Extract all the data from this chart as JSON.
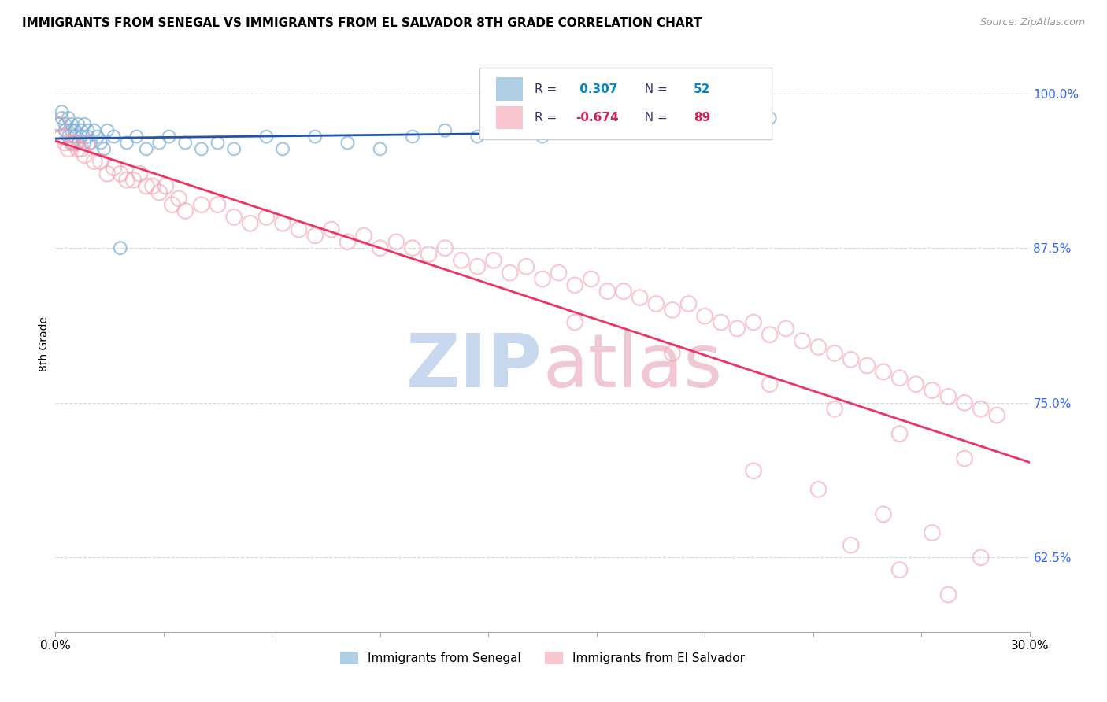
{
  "title": "IMMIGRANTS FROM SENEGAL VS IMMIGRANTS FROM EL SALVADOR 8TH GRADE CORRELATION CHART",
  "source": "Source: ZipAtlas.com",
  "ylabel": "8th Grade",
  "yaxis_labels": [
    "100.0%",
    "87.5%",
    "75.0%",
    "62.5%"
  ],
  "yaxis_values": [
    1.0,
    0.875,
    0.75,
    0.625
  ],
  "legend_senegal": "Immigrants from Senegal",
  "legend_salvador": "Immigrants from El Salvador",
  "R_senegal": 0.307,
  "N_senegal": 52,
  "R_salvador": -0.674,
  "N_salvador": 89,
  "senegal_color": "#7bafd4",
  "salvador_color": "#f4a0b0",
  "senegal_line_color": "#2255aa",
  "salvador_line_color": "#ee3366",
  "watermark_color_zip": "#c8d8ee",
  "watermark_color_atlas": "#f0c8d4",
  "bg_color": "#ffffff",
  "grid_color": "#d8d8d8",
  "xlim": [
    0.0,
    0.3
  ],
  "ylim": [
    0.565,
    1.03
  ],
  "senegal_x": [
    0.001,
    0.002,
    0.002,
    0.003,
    0.003,
    0.004,
    0.004,
    0.005,
    0.005,
    0.005,
    0.006,
    0.006,
    0.007,
    0.007,
    0.008,
    0.008,
    0.009,
    0.009,
    0.01,
    0.01,
    0.011,
    0.012,
    0.013,
    0.014,
    0.015,
    0.016,
    0.018,
    0.02,
    0.022,
    0.025,
    0.028,
    0.032,
    0.035,
    0.04,
    0.045,
    0.05,
    0.055,
    0.065,
    0.07,
    0.08,
    0.09,
    0.1,
    0.11,
    0.12,
    0.13,
    0.14,
    0.15,
    0.16,
    0.17,
    0.18,
    0.2,
    0.22
  ],
  "senegal_y": [
    0.975,
    0.98,
    0.985,
    0.975,
    0.97,
    0.965,
    0.98,
    0.97,
    0.975,
    0.96,
    0.965,
    0.97,
    0.975,
    0.96,
    0.97,
    0.965,
    0.975,
    0.96,
    0.97,
    0.965,
    0.96,
    0.97,
    0.965,
    0.96,
    0.955,
    0.97,
    0.965,
    0.875,
    0.96,
    0.965,
    0.955,
    0.96,
    0.965,
    0.96,
    0.955,
    0.96,
    0.955,
    0.965,
    0.955,
    0.965,
    0.96,
    0.955,
    0.965,
    0.97,
    0.965,
    0.97,
    0.965,
    0.975,
    0.97,
    0.975,
    0.975,
    0.98
  ],
  "salvador_x": [
    0.001,
    0.002,
    0.003,
    0.004,
    0.005,
    0.006,
    0.007,
    0.008,
    0.009,
    0.01,
    0.012,
    0.014,
    0.016,
    0.018,
    0.02,
    0.022,
    0.024,
    0.026,
    0.028,
    0.03,
    0.032,
    0.034,
    0.036,
    0.038,
    0.04,
    0.045,
    0.05,
    0.055,
    0.06,
    0.065,
    0.07,
    0.075,
    0.08,
    0.085,
    0.09,
    0.095,
    0.1,
    0.105,
    0.11,
    0.115,
    0.12,
    0.125,
    0.13,
    0.135,
    0.14,
    0.145,
    0.15,
    0.155,
    0.16,
    0.165,
    0.17,
    0.175,
    0.18,
    0.185,
    0.19,
    0.195,
    0.2,
    0.205,
    0.21,
    0.215,
    0.22,
    0.225,
    0.23,
    0.235,
    0.24,
    0.245,
    0.25,
    0.255,
    0.26,
    0.265,
    0.27,
    0.275,
    0.28,
    0.285,
    0.29,
    0.16,
    0.19,
    0.22,
    0.24,
    0.26,
    0.28,
    0.215,
    0.235,
    0.255,
    0.27,
    0.285,
    0.245,
    0.26,
    0.275
  ],
  "salvador_y": [
    0.975,
    0.965,
    0.96,
    0.955,
    0.96,
    0.96,
    0.955,
    0.955,
    0.95,
    0.96,
    0.945,
    0.945,
    0.935,
    0.94,
    0.935,
    0.93,
    0.93,
    0.935,
    0.925,
    0.925,
    0.92,
    0.925,
    0.91,
    0.915,
    0.905,
    0.91,
    0.91,
    0.9,
    0.895,
    0.9,
    0.895,
    0.89,
    0.885,
    0.89,
    0.88,
    0.885,
    0.875,
    0.88,
    0.875,
    0.87,
    0.875,
    0.865,
    0.86,
    0.865,
    0.855,
    0.86,
    0.85,
    0.855,
    0.845,
    0.85,
    0.84,
    0.84,
    0.835,
    0.83,
    0.825,
    0.83,
    0.82,
    0.815,
    0.81,
    0.815,
    0.805,
    0.81,
    0.8,
    0.795,
    0.79,
    0.785,
    0.78,
    0.775,
    0.77,
    0.765,
    0.76,
    0.755,
    0.75,
    0.745,
    0.74,
    0.815,
    0.79,
    0.765,
    0.745,
    0.725,
    0.705,
    0.695,
    0.68,
    0.66,
    0.645,
    0.625,
    0.635,
    0.615,
    0.595
  ]
}
